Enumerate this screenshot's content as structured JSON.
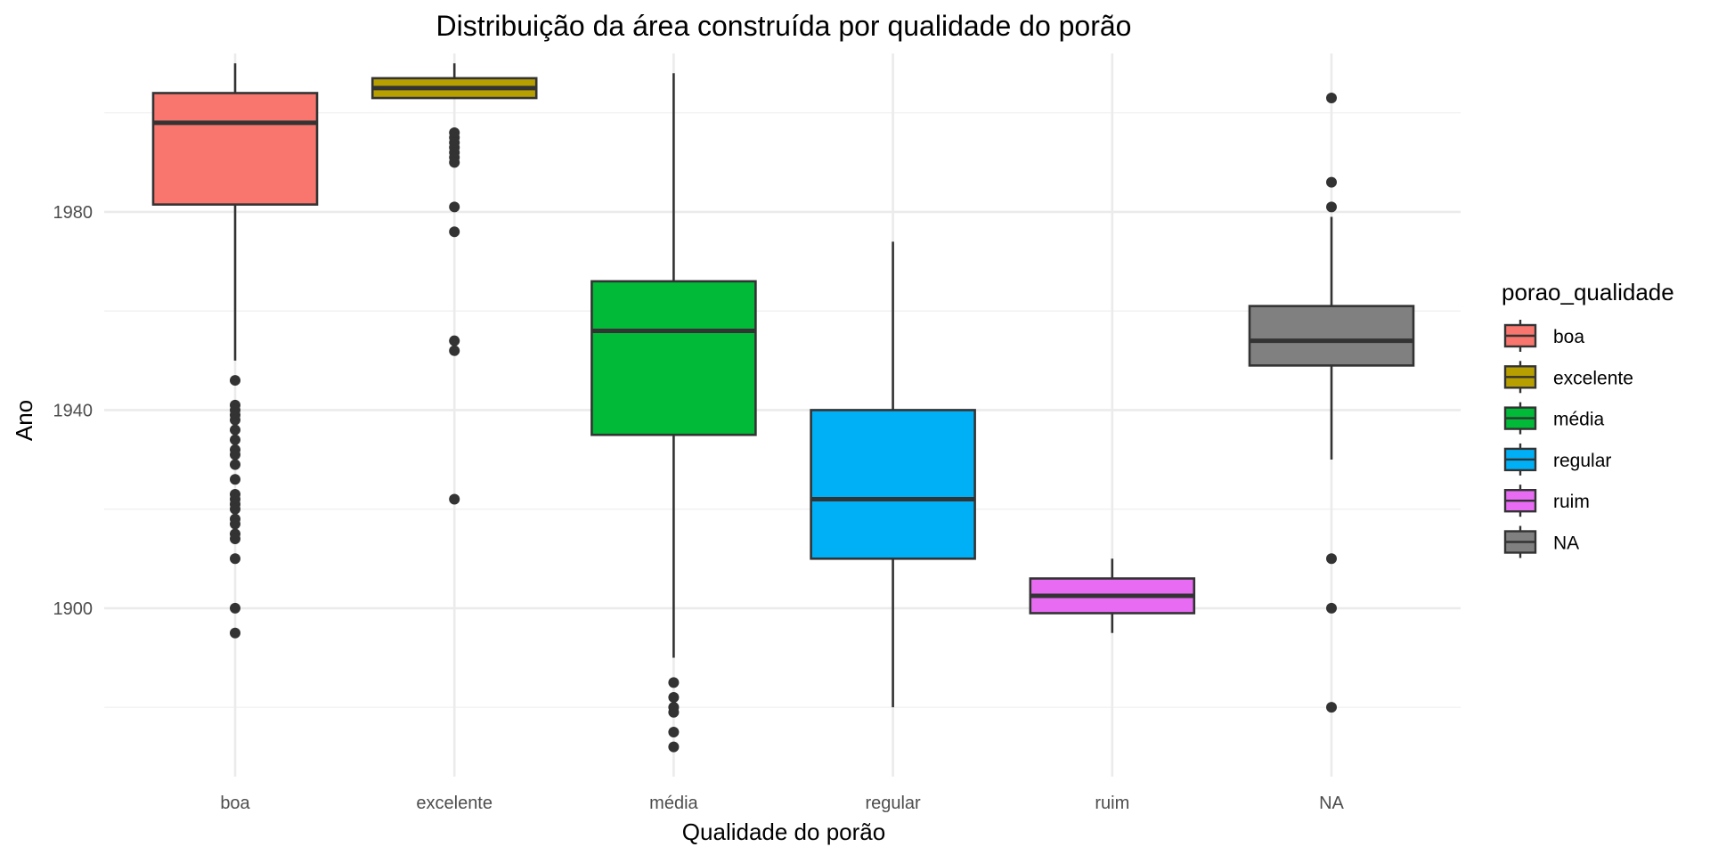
{
  "chart_data": {
    "type": "boxplot",
    "title": "Distribuição da área construída por qualidade do porão",
    "xlabel": "Qualidade do porão",
    "ylabel": "Ano",
    "ylim": [
      1866,
      2012
    ],
    "yticks": [
      1900,
      1940,
      1980
    ],
    "y_minor_gridlines": [
      1880,
      1920,
      1960,
      2000
    ],
    "grid": true,
    "legend": {
      "title": "porao_qualidade",
      "position": "right",
      "entries": [
        "boa",
        "excelente",
        "média",
        "regular",
        "ruim",
        "NA"
      ]
    },
    "categories": [
      "boa",
      "excelente",
      "média",
      "regular",
      "ruim",
      "NA"
    ],
    "colors": [
      "#F8766D",
      "#B79F00",
      "#00BA38",
      "#00B0F6",
      "#E76BF3",
      "#808080"
    ],
    "boxes": [
      {
        "name": "boa",
        "whisker_low": 1950,
        "q1": 1981.5,
        "median": 1998,
        "q3": 2004,
        "whisker_high": 2010,
        "outliers": [
          1946,
          1941,
          1940,
          1939,
          1938,
          1936,
          1934,
          1932,
          1931,
          1929,
          1926,
          1923,
          1922,
          1921,
          1920,
          1918,
          1917,
          1915,
          1914,
          1910,
          1900,
          1895
        ]
      },
      {
        "name": "excelente",
        "whisker_low": 2003,
        "q1": 2003,
        "median": 2005,
        "q3": 2007,
        "whisker_high": 2010,
        "outliers": [
          1996,
          1995,
          1994,
          1993,
          1992,
          1991,
          1990,
          1981,
          1976,
          1954,
          1952,
          1922
        ]
      },
      {
        "name": "média",
        "whisker_low": 1890,
        "q1": 1935,
        "median": 1956,
        "q3": 1966,
        "whisker_high": 2008,
        "outliers": [
          1885,
          1882,
          1880,
          1879,
          1875,
          1872
        ]
      },
      {
        "name": "regular",
        "whisker_low": 1880,
        "q1": 1910,
        "median": 1922,
        "q3": 1940,
        "whisker_high": 1974,
        "outliers": []
      },
      {
        "name": "ruim",
        "whisker_low": 1895,
        "q1": 1899,
        "median": 1902.5,
        "q3": 1906,
        "whisker_high": 1910,
        "outliers": []
      },
      {
        "name": "NA",
        "whisker_low": 1930,
        "q1": 1949,
        "median": 1954,
        "q3": 1961,
        "whisker_high": 1979,
        "outliers": [
          2003,
          1986,
          1981,
          1910,
          1900,
          1880
        ]
      }
    ]
  }
}
